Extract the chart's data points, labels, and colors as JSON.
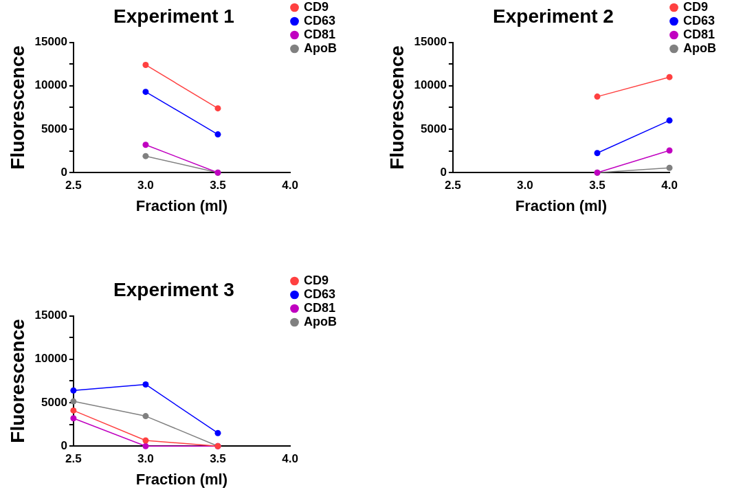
{
  "chart_data": [
    {
      "type": "line",
      "title": "Experiment 1",
      "xlabel": "Fraction (ml)",
      "ylabel": "Fluorescence",
      "xlim": [
        2.5,
        4.0
      ],
      "xticks": [
        {
          "value": 2.5,
          "label": "2.5"
        },
        {
          "value": 3.0,
          "label": "3.0"
        },
        {
          "value": 3.5,
          "label": "3.5"
        },
        {
          "value": 4.0,
          "label": "4.0"
        }
      ],
      "ylim": [
        0,
        15000
      ],
      "yticks": [
        0,
        {
          "value": 2500,
          "label": null
        },
        5000,
        {
          "value": 7500,
          "label": null
        },
        10000,
        {
          "value": 12500,
          "label": null
        },
        15000
      ],
      "legend": "right",
      "marker": "circle",
      "line_style": "solid",
      "series": [
        {
          "name": "CD9",
          "color": "#ff4040",
          "x": [
            3.0,
            3.5
          ],
          "values": [
            12400,
            7400
          ]
        },
        {
          "name": "CD63",
          "color": "#0000ff",
          "x": [
            3.0,
            3.5
          ],
          "values": [
            9300,
            4400
          ]
        },
        {
          "name": "CD81",
          "color": "#c000c0",
          "x": [
            3.0,
            3.5
          ],
          "values": [
            3200,
            0
          ]
        },
        {
          "name": "ApoB",
          "color": "#808080",
          "x": [
            3.0,
            3.5
          ],
          "values": [
            1900,
            0
          ]
        }
      ]
    },
    {
      "type": "line",
      "title": "Experiment 2",
      "xlabel": "Fraction (ml)",
      "ylabel": "Fluorescence",
      "xlim": [
        2.5,
        4.0
      ],
      "xticks": [
        {
          "value": 2.5,
          "label": "2.5"
        },
        {
          "value": 3.0,
          "label": "3.0"
        },
        {
          "value": 3.5,
          "label": "3.5"
        },
        {
          "value": 4.0,
          "label": "4.0"
        }
      ],
      "ylim": [
        0,
        15000
      ],
      "yticks": [
        0,
        {
          "value": 2500,
          "label": null
        },
        5000,
        {
          "value": 7500,
          "label": null
        },
        10000,
        {
          "value": 12500,
          "label": null
        },
        15000
      ],
      "legend": "right",
      "marker": "circle",
      "line_style": "solid",
      "series": [
        {
          "name": "CD9",
          "color": "#ff4040",
          "x": [
            3.5,
            4.0
          ],
          "values": [
            8750,
            11000
          ]
        },
        {
          "name": "CD63",
          "color": "#0000ff",
          "x": [
            3.5,
            4.0
          ],
          "values": [
            2250,
            6000
          ]
        },
        {
          "name": "CD81",
          "color": "#c000c0",
          "x": [
            3.5,
            4.0
          ],
          "values": [
            0,
            2550
          ]
        },
        {
          "name": "ApoB",
          "color": "#808080",
          "x": [
            3.5,
            4.0
          ],
          "values": [
            0,
            550
          ]
        }
      ]
    },
    {
      "type": "line",
      "title": "Experiment 3",
      "xlabel": "Fraction (ml)",
      "ylabel": "Fluorescence",
      "xlim": [
        2.5,
        4.0
      ],
      "xticks": [
        {
          "value": 2.5,
          "label": "2.5"
        },
        {
          "value": 3.0,
          "label": "3.0"
        },
        {
          "value": 3.5,
          "label": "3.5"
        },
        {
          "value": 4.0,
          "label": "4.0"
        }
      ],
      "ylim": [
        0,
        15000
      ],
      "yticks": [
        0,
        {
          "value": 2500,
          "label": null
        },
        5000,
        {
          "value": 7500,
          "label": null
        },
        10000,
        {
          "value": 12500,
          "label": null
        },
        15000
      ],
      "legend": "right",
      "marker": "circle",
      "line_style": "solid",
      "series": [
        {
          "name": "CD9",
          "color": "#ff4040",
          "x": [
            2.5,
            3.0,
            3.5
          ],
          "values": [
            4100,
            650,
            0
          ]
        },
        {
          "name": "CD63",
          "color": "#0000ff",
          "x": [
            2.5,
            3.0,
            3.5
          ],
          "values": [
            6400,
            7100,
            1500
          ]
        },
        {
          "name": "CD81",
          "color": "#c000c0",
          "x": [
            2.5,
            3.0,
            3.5
          ],
          "values": [
            3200,
            0,
            0
          ]
        },
        {
          "name": "ApoB",
          "color": "#808080",
          "x": [
            2.5,
            3.0,
            3.5
          ],
          "values": [
            5150,
            3450,
            0
          ]
        }
      ]
    }
  ]
}
